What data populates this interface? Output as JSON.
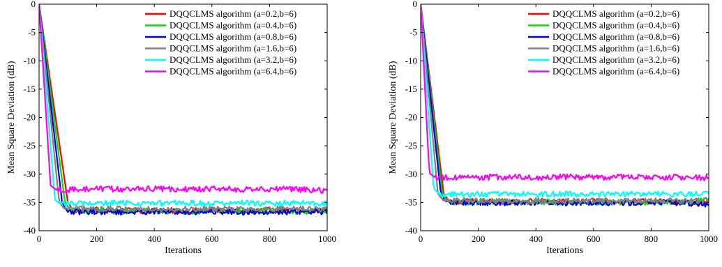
{
  "chart_data": [
    {
      "type": "line",
      "title": "",
      "xlabel": "Iterations",
      "ylabel": "Mean Square Deviation (dB)",
      "xlim": [
        0,
        1000
      ],
      "ylim": [
        -40,
        0
      ],
      "xticks": [
        0,
        200,
        400,
        600,
        800,
        1000
      ],
      "yticks": [
        0,
        -5,
        -10,
        -15,
        -20,
        -25,
        -30,
        -35,
        -40
      ],
      "grid": false,
      "legend_position": "top-right",
      "series": [
        {
          "name": "DQQCLMS algorithm (a=0.2,b=6)",
          "color": "#ff0000",
          "x": [
            0,
            100,
            120,
            200,
            300,
            400,
            500,
            600,
            700,
            800,
            900,
            1000
          ],
          "y": [
            0,
            -35,
            -36.5,
            -36.3,
            -36.5,
            -36.4,
            -36.5,
            -36.4,
            -36.5,
            -36.4,
            -36.5,
            -36.4
          ]
        },
        {
          "name": "DQQCLMS algorithm (a=0.4,b=6)",
          "color": "#00dd00",
          "x": [
            0,
            90,
            110,
            200,
            300,
            400,
            500,
            600,
            700,
            800,
            900,
            1000
          ],
          "y": [
            0,
            -35,
            -36.5,
            -36.4,
            -36.6,
            -36.5,
            -36.6,
            -36.5,
            -36.6,
            -36.5,
            -36.6,
            -36.5
          ]
        },
        {
          "name": "DQQCLMS algorithm (a=0.8,b=6)",
          "color": "#0000dd",
          "x": [
            0,
            80,
            100,
            200,
            300,
            400,
            500,
            600,
            700,
            800,
            900,
            1000
          ],
          "y": [
            0,
            -35,
            -36.7,
            -36.6,
            -36.7,
            -36.6,
            -36.7,
            -36.6,
            -36.7,
            -36.6,
            -36.7,
            -36.6
          ]
        },
        {
          "name": "DQQCLMS algorithm (a=1.6,b=6)",
          "color": "#808080",
          "x": [
            0,
            70,
            90,
            200,
            300,
            400,
            500,
            600,
            700,
            800,
            900,
            1000
          ],
          "y": [
            0,
            -35,
            -36.2,
            -36.1,
            -36.2,
            -36.1,
            -36.2,
            -36.1,
            -36.2,
            -36.1,
            -36.2,
            -36.1
          ]
        },
        {
          "name": "DQQCLMS algorithm (a=3.2,b=6)",
          "color": "#00ffff",
          "x": [
            0,
            55,
            70,
            200,
            300,
            400,
            500,
            600,
            700,
            800,
            900,
            1000
          ],
          "y": [
            0,
            -34.5,
            -35.2,
            -35.2,
            -35.1,
            -35.2,
            -35.1,
            -35.2,
            -35.1,
            -35.2,
            -35.1,
            -35.2
          ]
        },
        {
          "name": "DQQCLMS algorithm (a=6.4,b=6)",
          "color": "#ff00ff",
          "x": [
            0,
            40,
            60,
            200,
            300,
            400,
            500,
            600,
            700,
            800,
            900,
            1000
          ],
          "y": [
            0,
            -32,
            -32.8,
            -32.6,
            -32.7,
            -32.6,
            -32.7,
            -32.6,
            -32.7,
            -32.6,
            -32.7,
            -32.9
          ]
        }
      ]
    },
    {
      "type": "line",
      "title": "",
      "xlabel": "Iterations",
      "ylabel": "Mean Square Deviation (dB)",
      "xlim": [
        0,
        1000
      ],
      "ylim": [
        -40,
        0
      ],
      "xticks": [
        0,
        200,
        400,
        600,
        800,
        1000
      ],
      "yticks": [
        0,
        -5,
        -10,
        -15,
        -20,
        -25,
        -30,
        -35,
        -40
      ],
      "grid": false,
      "legend_position": "top-right",
      "series": [
        {
          "name": "DQQCLMS algorithm (a=0.2,b=6)",
          "color": "#ff0000",
          "x": [
            0,
            80,
            100,
            200,
            300,
            400,
            500,
            600,
            700,
            800,
            900,
            1000
          ],
          "y": [
            0,
            -33.5,
            -34.8,
            -34.8,
            -34.9,
            -34.8,
            -34.9,
            -34.8,
            -34.9,
            -34.8,
            -34.9,
            -34.8
          ]
        },
        {
          "name": "DQQCLMS algorithm (a=0.4,b=6)",
          "color": "#00dd00",
          "x": [
            0,
            75,
            95,
            200,
            300,
            400,
            500,
            600,
            700,
            800,
            900,
            1000
          ],
          "y": [
            0,
            -33.5,
            -34.9,
            -34.9,
            -35.0,
            -34.9,
            -35.0,
            -34.9,
            -35.0,
            -34.9,
            -35.0,
            -34.6
          ]
        },
        {
          "name": "DQQCLMS algorithm (a=0.8,b=6)",
          "color": "#0000dd",
          "x": [
            0,
            70,
            90,
            200,
            300,
            400,
            500,
            600,
            700,
            800,
            900,
            1000
          ],
          "y": [
            0,
            -33.5,
            -35.0,
            -35.0,
            -35.1,
            -35.0,
            -35.1,
            -35.0,
            -35.1,
            -35.0,
            -35.1,
            -35.3
          ]
        },
        {
          "name": "DQQCLMS algorithm (a=1.6,b=6)",
          "color": "#808080",
          "x": [
            0,
            60,
            80,
            200,
            300,
            400,
            500,
            600,
            700,
            800,
            900,
            1000
          ],
          "y": [
            0,
            -33.5,
            -34.7,
            -34.7,
            -34.8,
            -34.7,
            -34.8,
            -34.7,
            -34.8,
            -34.7,
            -34.8,
            -34.7
          ]
        },
        {
          "name": "DQQCLMS algorithm (a=3.2,b=6)",
          "color": "#00ffff",
          "x": [
            0,
            45,
            65,
            200,
            300,
            400,
            500,
            600,
            700,
            800,
            900,
            1000
          ],
          "y": [
            0,
            -32.5,
            -33.6,
            -33.6,
            -33.5,
            -33.6,
            -33.5,
            -33.6,
            -33.5,
            -33.6,
            -33.5,
            -33.6
          ]
        },
        {
          "name": "DQQCLMS algorithm (a=6.4,b=6)",
          "color": "#ff00ff",
          "x": [
            0,
            30,
            50,
            200,
            300,
            400,
            500,
            600,
            700,
            800,
            900,
            1000
          ],
          "y": [
            0,
            -29.8,
            -30.6,
            -30.6,
            -30.5,
            -30.6,
            -30.5,
            -30.6,
            -30.5,
            -30.6,
            -30.5,
            -30.7
          ]
        }
      ]
    }
  ]
}
